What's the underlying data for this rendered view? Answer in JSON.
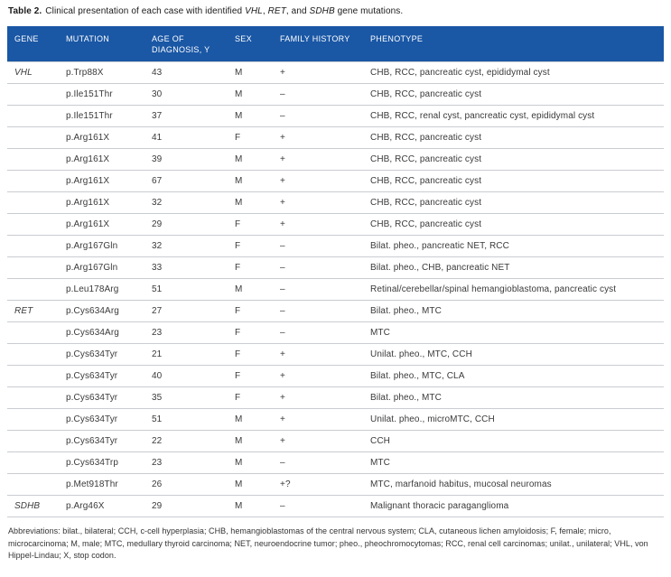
{
  "caption": {
    "label": "Table 2.",
    "part1": "Clinical presentation of each case with identified ",
    "gene1": "VHL",
    "sep1": ", ",
    "gene2": "RET",
    "sep2": ", and ",
    "gene3": "SDHB",
    "part2": " gene mutations."
  },
  "table": {
    "columns": [
      "GENE",
      "MUTATION",
      "AGE OF DIAGNOSIS, Y",
      "SEX",
      "FAMILY HISTORY",
      "PHENOTYPE"
    ],
    "fields": [
      "gene",
      "mutation",
      "age",
      "sex",
      "family_history",
      "phenotype"
    ],
    "rows": [
      {
        "gene": "VHL",
        "mutation": "p.Trp88X",
        "age": "43",
        "sex": "M",
        "family_history": "+",
        "phenotype": "CHB, RCC, pancreatic cyst, epididymal cyst"
      },
      {
        "gene": "",
        "mutation": "p.Ile151Thr",
        "age": "30",
        "sex": "M",
        "family_history": "–",
        "phenotype": "CHB, RCC, pancreatic cyst"
      },
      {
        "gene": "",
        "mutation": "p.Ile151Thr",
        "age": "37",
        "sex": "M",
        "family_history": "–",
        "phenotype": "CHB, RCC, renal cyst, pancreatic cyst, epididymal cyst"
      },
      {
        "gene": "",
        "mutation": "p.Arg161X",
        "age": "41",
        "sex": "F",
        "family_history": "+",
        "phenotype": "CHB, RCC, pancreatic cyst"
      },
      {
        "gene": "",
        "mutation": "p.Arg161X",
        "age": "39",
        "sex": "M",
        "family_history": "+",
        "phenotype": "CHB, RCC, pancreatic cyst"
      },
      {
        "gene": "",
        "mutation": "p.Arg161X",
        "age": "67",
        "sex": "M",
        "family_history": "+",
        "phenotype": "CHB, RCC, pancreatic cyst"
      },
      {
        "gene": "",
        "mutation": "p.Arg161X",
        "age": "32",
        "sex": "M",
        "family_history": "+",
        "phenotype": "CHB, RCC, pancreatic cyst"
      },
      {
        "gene": "",
        "mutation": "p.Arg161X",
        "age": "29",
        "sex": "F",
        "family_history": "+",
        "phenotype": "CHB, RCC, pancreatic cyst"
      },
      {
        "gene": "",
        "mutation": "p.Arg167Gln",
        "age": "32",
        "sex": "F",
        "family_history": "–",
        "phenotype": "Bilat. pheo., pancreatic NET, RCC"
      },
      {
        "gene": "",
        "mutation": "p.Arg167Gln",
        "age": "33",
        "sex": "F",
        "family_history": "–",
        "phenotype": "Bilat. pheo., CHB, pancreatic NET"
      },
      {
        "gene": "",
        "mutation": "p.Leu178Arg",
        "age": "51",
        "sex": "M",
        "family_history": "–",
        "phenotype": "Retinal/cerebellar/spinal hemangioblastoma, pancreatic cyst"
      },
      {
        "gene": "RET",
        "mutation": "p.Cys634Arg",
        "age": "27",
        "sex": "F",
        "family_history": "–",
        "phenotype": "Bilat. pheo., MTC"
      },
      {
        "gene": "",
        "mutation": "p.Cys634Arg",
        "age": "23",
        "sex": "F",
        "family_history": "–",
        "phenotype": "MTC"
      },
      {
        "gene": "",
        "mutation": "p.Cys634Tyr",
        "age": "21",
        "sex": "F",
        "family_history": "+",
        "phenotype": "Unilat. pheo., MTC, CCH"
      },
      {
        "gene": "",
        "mutation": "p.Cys634Tyr",
        "age": "40",
        "sex": "F",
        "family_history": "+",
        "phenotype": "Bilat. pheo., MTC, CLA"
      },
      {
        "gene": "",
        "mutation": "p.Cys634Tyr",
        "age": "35",
        "sex": "F",
        "family_history": "+",
        "phenotype": "Bilat. pheo., MTC"
      },
      {
        "gene": "",
        "mutation": "p.Cys634Tyr",
        "age": "51",
        "sex": "M",
        "family_history": "+",
        "phenotype": "Unilat. pheo., microMTC, CCH"
      },
      {
        "gene": "",
        "mutation": "p.Cys634Tyr",
        "age": "22",
        "sex": "M",
        "family_history": "+",
        "phenotype": "CCH"
      },
      {
        "gene": "",
        "mutation": "p.Cys634Trp",
        "age": "23",
        "sex": "M",
        "family_history": "–",
        "phenotype": "MTC"
      },
      {
        "gene": "",
        "mutation": "p.Met918Thr",
        "age": "26",
        "sex": "M",
        "family_history": "+?",
        "phenotype": "MTC, marfanoid habitus, mucosal neuromas"
      },
      {
        "gene": "SDHB",
        "mutation": "p.Arg46X",
        "age": "29",
        "sex": "M",
        "family_history": "–",
        "phenotype": "Malignant thoracic paraganglioma"
      }
    ]
  },
  "footnote": "Abbreviations: bilat., bilateral; CCH, c-cell hyperplasia; CHB, hemangioblastomas of the central nervous system; CLA, cutaneous lichen amyloidosis; F, female; micro, microcarcinoma; M, male; MTC, medullary thyroid carcinoma; NET, neuroendocrine tumor; pheo., pheochromocytomas; RCC, renal cell carcinomas; unilat., unilateral; VHL, von Hippel-Lindau; X, stop codon.",
  "colors": {
    "header_bg": "#1a57a5",
    "header_text": "#ffffff",
    "row_divider": "#c9ccd1",
    "body_text": "#3a3a3a"
  }
}
